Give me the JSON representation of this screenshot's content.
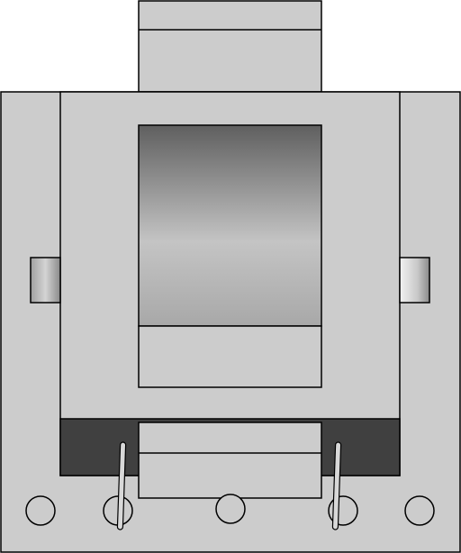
{
  "drawing": {
    "view": "front-elevation",
    "colors": {
      "outline": "#000000",
      "body_fill": "#cccccc",
      "dark_band": "#404040",
      "shade_dark": "#5f5f5f",
      "shade_light": "#c4c4c4",
      "pin_fill": "#d8d8d8"
    },
    "parts": {
      "top_block": "top-block",
      "base_plate": "base-plate",
      "center_housing": "center-housing",
      "window": "shaded-window",
      "lower_panel": "lower-panel",
      "side_knobs": 2,
      "dark_band": "dark-band",
      "front_block": "front-block",
      "clips": 2,
      "mounting_holes": 5
    }
  }
}
